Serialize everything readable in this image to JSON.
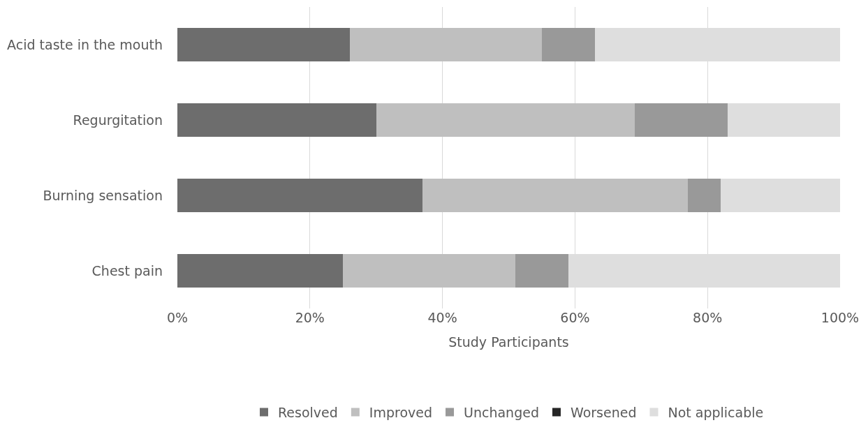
{
  "chart_data": {
    "type": "bar",
    "orientation": "horizontal",
    "stacked": true,
    "categories": [
      "Acid taste in the mouth",
      "Regurgitation",
      "Burning sensation",
      "Chest pain"
    ],
    "series": [
      {
        "name": "Resolved",
        "color": "#6d6d6d",
        "values": [
          26,
          30,
          37,
          25
        ]
      },
      {
        "name": "Improved",
        "color": "#bfbfbf",
        "values": [
          29,
          39,
          40,
          26
        ]
      },
      {
        "name": "Unchanged",
        "color": "#999999",
        "values": [
          8,
          14,
          5,
          8
        ]
      },
      {
        "name": "Worsened",
        "color": "#262626",
        "values": [
          0,
          0,
          0,
          0
        ]
      },
      {
        "name": "Not applicable",
        "color": "#dedede",
        "values": [
          37,
          17,
          18,
          41
        ]
      }
    ],
    "xlabel": "Study Participants",
    "xlim": [
      0,
      100
    ],
    "xticks": [
      {
        "value": 0,
        "label": "0%"
      },
      {
        "value": 20,
        "label": "20%"
      },
      {
        "value": 40,
        "label": "40%"
      },
      {
        "value": 60,
        "label": "60%"
      },
      {
        "value": 80,
        "label": "80%"
      },
      {
        "value": 100,
        "label": "100%"
      }
    ],
    "grid": "x",
    "legend": "bottom"
  }
}
